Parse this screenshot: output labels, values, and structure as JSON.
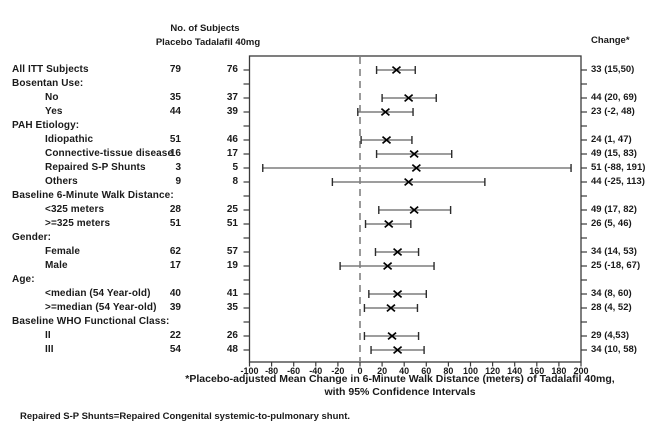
{
  "ui": {
    "col_group_header": "No. of Subjects",
    "col_header": "Placebo Tadalafil 40mg",
    "change_header": "Change*",
    "footnote": "Repaired S-P Shunts=Repaired Congenital systemic-to-pulmonary shunt."
  },
  "chart_data": {
    "type": "scatter",
    "subtype": "forest-plot",
    "title_line1": "*Placebo-adjusted Mean Change in 6-Minute Walk Distance (meters) of Tadalafil 40mg,",
    "title_line2": "with 95% Confidence Intervals",
    "xlabel": "",
    "ylabel": "",
    "xlim": [
      -100,
      200
    ],
    "x_ticks": [
      -100,
      -80,
      -60,
      -40,
      -20,
      0,
      20,
      40,
      60,
      80,
      100,
      120,
      140,
      160,
      180,
      200
    ],
    "reference_line_x": 0,
    "grid": false,
    "marker": "x",
    "colors": {
      "ci_line": "#7d7d7d",
      "ci_cap": "#2b2b2b",
      "marker": "#000000",
      "frame": "#3a3a3a",
      "ref_line": "#9a9a9a"
    },
    "rows": [
      {
        "label": "All ITT Subjects",
        "indent": false,
        "placebo": "79",
        "tadalafil": "76",
        "change": "33 (15,50)",
        "est": 33,
        "lo": 15,
        "hi": 50
      },
      {
        "label": "Bosentan Use:",
        "indent": false,
        "header": true
      },
      {
        "label": "No",
        "indent": true,
        "placebo": "35",
        "tadalafil": "37",
        "change": "44 (20, 69)",
        "est": 44,
        "lo": 20,
        "hi": 69
      },
      {
        "label": "Yes",
        "indent": true,
        "placebo": "44",
        "tadalafil": "39",
        "change": "23 (-2, 48)",
        "est": 23,
        "lo": -2,
        "hi": 48
      },
      {
        "label": "PAH Etiology:",
        "indent": false,
        "header": true
      },
      {
        "label": "Idiopathic",
        "indent": true,
        "placebo": "51",
        "tadalafil": "46",
        "change": "24 (1, 47)",
        "est": 24,
        "lo": 1,
        "hi": 47
      },
      {
        "label": "Connective-tissue disease",
        "indent": true,
        "placebo": "16",
        "tadalafil": "17",
        "change": "49 (15, 83)",
        "est": 49,
        "lo": 15,
        "hi": 83
      },
      {
        "label": "Repaired  S-P Shunts",
        "indent": true,
        "placebo": "3",
        "tadalafil": "5",
        "change": "51 (-88, 191)",
        "est": 51,
        "lo": -88,
        "hi": 191
      },
      {
        "label": "Others",
        "indent": true,
        "placebo": "9",
        "tadalafil": "8",
        "change": "44 (-25, 113)",
        "est": 44,
        "lo": -25,
        "hi": 113
      },
      {
        "label": "Baseline 6-Minute Walk Distance:",
        "indent": false,
        "header": true
      },
      {
        "label": "<325 meters",
        "indent": true,
        "placebo": "28",
        "tadalafil": "25",
        "change": "49 (17, 82)",
        "est": 49,
        "lo": 17,
        "hi": 82
      },
      {
        "label": ">=325 meters",
        "indent": true,
        "placebo": "51",
        "tadalafil": "51",
        "change": "26 (5, 46)",
        "est": 26,
        "lo": 5,
        "hi": 46
      },
      {
        "label": "Gender:",
        "indent": false,
        "header": true
      },
      {
        "label": "Female",
        "indent": true,
        "placebo": "62",
        "tadalafil": "57",
        "change": "34 (14, 53)",
        "est": 34,
        "lo": 14,
        "hi": 53
      },
      {
        "label": "Male",
        "indent": true,
        "placebo": "17",
        "tadalafil": "19",
        "change": "25 (-18, 67)",
        "est": 25,
        "lo": -18,
        "hi": 67
      },
      {
        "label": "Age:",
        "indent": false,
        "header": true
      },
      {
        "label": "<median (54 Year-old)",
        "indent": true,
        "placebo": "40",
        "tadalafil": "41",
        "change": "34 (8, 60)",
        "est": 34,
        "lo": 8,
        "hi": 60
      },
      {
        "label": ">=median (54 Year-old)",
        "indent": true,
        "placebo": "39",
        "tadalafil": "35",
        "change": "28 (4, 52)",
        "est": 28,
        "lo": 4,
        "hi": 52
      },
      {
        "label": "Baseline WHO Functional Class:",
        "indent": false,
        "header": true
      },
      {
        "label": "II",
        "indent": true,
        "placebo": "22",
        "tadalafil": "26",
        "change": "29 (4,53)",
        "est": 29,
        "lo": 4,
        "hi": 53
      },
      {
        "label": "III",
        "indent": true,
        "placebo": "54",
        "tadalafil": "48",
        "change": "34 (10, 58)",
        "est": 34,
        "lo": 10,
        "hi": 58
      }
    ]
  }
}
